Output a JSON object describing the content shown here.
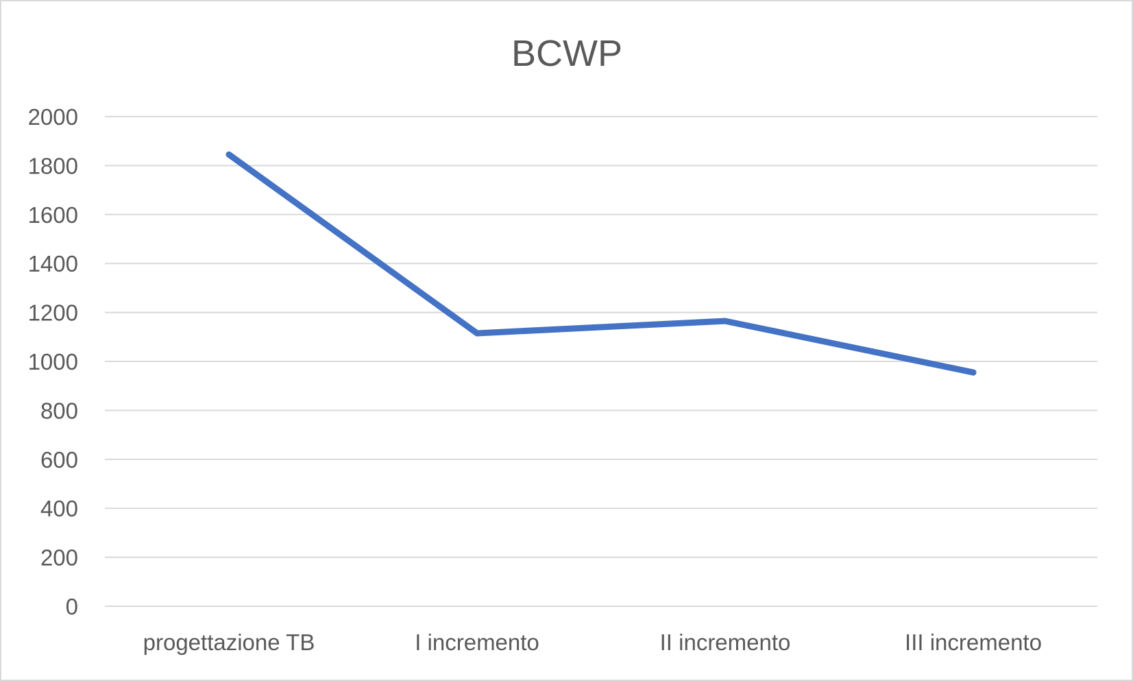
{
  "chart_data": {
    "type": "line",
    "title": "BCWP",
    "xlabel": "",
    "ylabel": "",
    "categories": [
      "progettazione TB",
      "I incremento",
      "II incremento",
      "III incremento"
    ],
    "series": [
      {
        "values": [
          1845,
          1115,
          1165,
          955
        ]
      }
    ],
    "ylim": [
      0,
      2000
    ],
    "yticks": [
      "0",
      "200",
      "400",
      "600",
      "800",
      "1000",
      "1200",
      "1400",
      "1600",
      "1800",
      "2000"
    ],
    "grid": true,
    "legend": "none",
    "colors": {
      "line": "#4472c4",
      "grid": "#d9d9d9",
      "text": "#595959",
      "border": "#d9d9d9"
    }
  }
}
